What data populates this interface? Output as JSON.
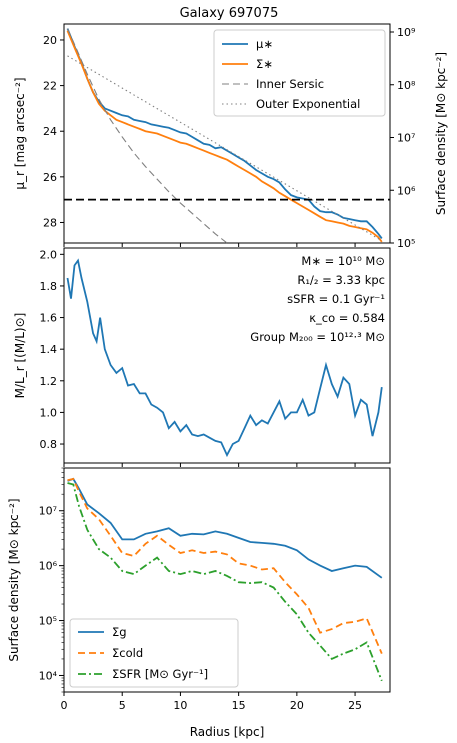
{
  "title": "Galaxy 697075",
  "colors": {
    "blue": "#1f77b4",
    "orange": "#ff7f0e",
    "green": "#2ca02c",
    "gray": "#808080",
    "black": "#000000"
  },
  "chart_data": [
    {
      "type": "line",
      "panel": "top",
      "title": "Galaxy 697075",
      "xlim": [
        0,
        28
      ],
      "ylabel": "μ_r [mag arcsec⁻²]",
      "ylim": [
        28.9,
        19.3
      ],
      "yticks": [
        "20",
        "22",
        "24",
        "26",
        "28"
      ],
      "ylabel_right": "Surface density [M⊙ kpc⁻²]",
      "yticks_right": [
        "10⁵",
        "10⁶",
        "10⁷",
        "10⁸",
        "10⁹"
      ],
      "hline": 27.0,
      "legend_position": "top-right",
      "series": [
        {
          "name": "μ∗",
          "color": "#1f77b4",
          "style": "solid",
          "x": [
            0.3,
            1.0,
            1.5,
            2.0,
            2.5,
            3.0,
            3.5,
            4.0,
            4.5,
            5.0,
            5.5,
            6.0,
            6.5,
            7.0,
            7.5,
            8.0,
            8.5,
            9.0,
            9.5,
            10.0,
            10.5,
            11.0,
            11.5,
            12.0,
            12.5,
            13.0,
            13.5,
            14.0,
            14.5,
            15.0,
            15.5,
            16.0,
            16.5,
            17.0,
            17.5,
            18.0,
            18.5,
            19.0,
            19.5,
            20.0,
            20.5,
            21.0,
            21.5,
            22.0,
            22.5,
            23.0,
            23.5,
            24.0,
            24.5,
            25.0,
            25.5,
            26.0,
            26.5,
            27.0,
            27.3
          ],
          "y": [
            19.5,
            20.4,
            21.0,
            21.7,
            22.3,
            22.7,
            23.0,
            23.1,
            23.2,
            23.3,
            23.35,
            23.5,
            23.55,
            23.6,
            23.7,
            23.75,
            23.8,
            23.85,
            23.95,
            24.05,
            24.1,
            24.25,
            24.4,
            24.55,
            24.6,
            24.75,
            24.7,
            24.85,
            25.0,
            25.15,
            25.3,
            25.5,
            25.7,
            25.85,
            26.0,
            26.1,
            26.25,
            26.55,
            26.8,
            26.9,
            26.95,
            27.0,
            27.3,
            27.5,
            27.55,
            27.55,
            27.65,
            27.8,
            27.85,
            27.9,
            27.95,
            27.95,
            28.2,
            28.5,
            28.7
          ]
        },
        {
          "name": "Σ∗",
          "color": "#ff7f0e",
          "style": "solid",
          "x": [
            0.3,
            1.0,
            1.5,
            2.0,
            2.5,
            3.0,
            3.5,
            4.0,
            4.5,
            5.0,
            5.5,
            6.0,
            6.5,
            7.0,
            7.5,
            8.0,
            8.5,
            9.0,
            9.5,
            10.0,
            10.5,
            11.0,
            11.5,
            12.0,
            12.5,
            13.0,
            13.5,
            14.0,
            14.5,
            15.0,
            15.5,
            16.0,
            16.5,
            17.0,
            17.5,
            18.0,
            18.5,
            19.0,
            19.5,
            20.0,
            20.5,
            21.0,
            21.5,
            22.0,
            22.5,
            23.0,
            23.5,
            24.0,
            24.5,
            25.0,
            25.5,
            26.0,
            26.5,
            27.0,
            27.3
          ],
          "y": [
            19.6,
            20.45,
            21.05,
            21.7,
            22.3,
            22.8,
            23.1,
            23.3,
            23.5,
            23.6,
            23.7,
            23.8,
            23.9,
            24.0,
            24.05,
            24.1,
            24.2,
            24.3,
            24.4,
            24.5,
            24.55,
            24.65,
            24.75,
            24.85,
            24.95,
            25.05,
            25.15,
            25.25,
            25.4,
            25.55,
            25.7,
            25.85,
            26.0,
            26.2,
            26.35,
            26.5,
            26.7,
            26.85,
            27.0,
            27.15,
            27.3,
            27.45,
            27.6,
            27.75,
            27.9,
            27.95,
            28.0,
            28.05,
            28.15,
            28.2,
            28.25,
            28.3,
            28.45,
            28.65,
            28.85
          ]
        },
        {
          "name": "Inner Sersic",
          "color": "#808080",
          "style": "dashed",
          "x": [
            0.3,
            1,
            2,
            3,
            4,
            5,
            6,
            7,
            8,
            9,
            10,
            11,
            12,
            13,
            14
          ],
          "y": [
            19.5,
            20.3,
            21.5,
            22.6,
            23.5,
            24.25,
            24.95,
            25.55,
            26.1,
            26.65,
            27.15,
            27.6,
            28.05,
            28.5,
            28.9
          ]
        },
        {
          "name": "Outer Exponential",
          "color": "#808080",
          "style": "dotted",
          "x": [
            0.3,
            27.3
          ],
          "y": [
            20.7,
            28.8
          ]
        }
      ]
    },
    {
      "type": "line",
      "panel": "middle",
      "ylabel": "M/L_r [(M/L)⊙]",
      "xlim": [
        0,
        28
      ],
      "ylim": [
        0.68,
        2.04
      ],
      "yticks": [
        "0.8",
        "1.0",
        "1.2",
        "1.4",
        "1.6",
        "1.8",
        "2.0"
      ],
      "annotations": [
        "M∗ = 10¹⁰ M⊙",
        "R₁/₂ = 3.33 kpc",
        "sSFR = 0.1 Gyr⁻¹",
        "κ_co = 0.584",
        "Group M₂₀₀ = 10¹²·³ M⊙"
      ],
      "series": [
        {
          "name": "",
          "color": "#1f77b4",
          "x": [
            0.3,
            0.6,
            0.9,
            1.2,
            1.5,
            2.0,
            2.5,
            2.8,
            3.1,
            3.5,
            4.0,
            4.5,
            5.0,
            5.5,
            6.0,
            6.5,
            7.0,
            7.5,
            8.0,
            8.5,
            9.0,
            9.5,
            10.0,
            10.5,
            11.0,
            11.5,
            12.0,
            12.5,
            13.0,
            13.5,
            14.0,
            14.5,
            15.0,
            15.5,
            16.0,
            16.5,
            17.0,
            17.5,
            18.0,
            18.5,
            19.0,
            19.5,
            20.0,
            20.5,
            21.0,
            21.5,
            22.0,
            22.5,
            23.0,
            23.5,
            24.0,
            24.5,
            25.0,
            25.5,
            26.0,
            26.5,
            27.0,
            27.3
          ],
          "y": [
            1.85,
            1.72,
            1.93,
            1.96,
            1.85,
            1.7,
            1.5,
            1.45,
            1.6,
            1.4,
            1.3,
            1.25,
            1.28,
            1.17,
            1.18,
            1.12,
            1.12,
            1.05,
            1.03,
            1.0,
            0.9,
            0.94,
            0.88,
            0.92,
            0.86,
            0.85,
            0.86,
            0.84,
            0.82,
            0.81,
            0.73,
            0.8,
            0.82,
            0.9,
            0.98,
            0.92,
            0.95,
            0.93,
            1.0,
            1.07,
            0.96,
            1.0,
            1.0,
            1.08,
            0.98,
            1.0,
            1.15,
            1.3,
            1.18,
            1.1,
            1.22,
            1.18,
            0.98,
            1.08,
            1.05,
            0.85,
            1.0,
            1.16
          ]
        }
      ]
    },
    {
      "type": "line",
      "panel": "bottom",
      "xlabel": "Radius [kpc]",
      "xticks": [
        "0",
        "5",
        "10",
        "15",
        "20",
        "25"
      ],
      "xlim": [
        0,
        28
      ],
      "ylabel": "Surface density [M⊙ kpc⁻²]",
      "yscale": "log",
      "ylim": [
        5000,
        60000000
      ],
      "yticks": [
        "10⁴",
        "10⁵",
        "10⁶",
        "10⁷"
      ],
      "legend_position": "bottom-left",
      "series": [
        {
          "name": "Σg",
          "color": "#1f77b4",
          "style": "solid",
          "x": [
            0.3,
            0.8,
            1.3,
            2.0,
            3.0,
            4.0,
            5.0,
            6.0,
            7.0,
            8.0,
            9.0,
            10.0,
            11.0,
            12.0,
            13.0,
            14.0,
            15.0,
            16.0,
            17.0,
            18.0,
            19.0,
            20.0,
            21.0,
            22.0,
            23.0,
            24.0,
            25.0,
            26.0,
            27.3
          ],
          "y": [
            35000000,
            38000000,
            25000000,
            13000000,
            9000000,
            6000000,
            3000000,
            3000000,
            3800000,
            4200000,
            4800000,
            3500000,
            3800000,
            3700000,
            4200000,
            3800000,
            3200000,
            2700000,
            2600000,
            2500000,
            2300000,
            1900000,
            1300000,
            1000000,
            800000,
            900000,
            1000000,
            950000,
            600000
          ]
        },
        {
          "name": "Σcold",
          "color": "#ff7f0e",
          "style": "dashed",
          "x": [
            0.3,
            0.8,
            1.3,
            2.0,
            3.0,
            4.0,
            5.0,
            6.0,
            7.0,
            8.0,
            9.0,
            10.0,
            11.0,
            12.0,
            13.0,
            14.0,
            15.0,
            16.0,
            17.0,
            18.0,
            19.0,
            20.0,
            21.0,
            22.0,
            23.0,
            24.0,
            25.0,
            26.0,
            27.3
          ],
          "y": [
            36000000,
            38000000,
            22000000,
            11000000,
            7000000,
            3500000,
            1700000,
            1500000,
            2500000,
            3500000,
            2400000,
            1700000,
            1900000,
            1700000,
            1800000,
            1600000,
            1100000,
            1000000,
            850000,
            900000,
            500000,
            300000,
            170000,
            60000,
            70000,
            90000,
            95000,
            110000,
            25000
          ]
        },
        {
          "name": "ΣSFR [M⊙ Gyr⁻¹]",
          "color": "#2ca02c",
          "style": "dashdot",
          "x": [
            0.3,
            0.8,
            1.3,
            2.0,
            3.0,
            4.0,
            5.0,
            6.0,
            7.0,
            8.0,
            9.0,
            10.0,
            11.0,
            12.0,
            13.0,
            14.0,
            15.0,
            16.0,
            17.0,
            18.0,
            19.0,
            20.0,
            21.0,
            22.0,
            23.0,
            24.0,
            25.0,
            26.0,
            27.3
          ],
          "y": [
            32000000,
            30000000,
            12000000,
            4500000,
            2000000,
            1400000,
            800000,
            700000,
            1000000,
            1400000,
            800000,
            700000,
            800000,
            700000,
            800000,
            650000,
            500000,
            480000,
            500000,
            400000,
            220000,
            130000,
            60000,
            35000,
            20000,
            25000,
            30000,
            40000,
            8000
          ]
        }
      ]
    }
  ]
}
